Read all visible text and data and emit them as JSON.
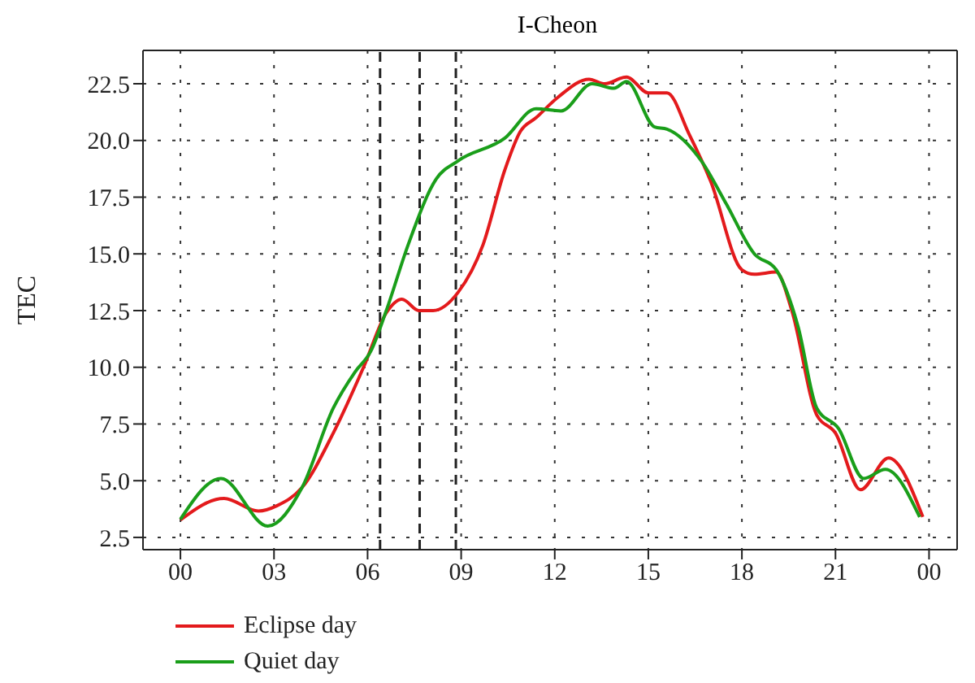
{
  "chart_data": {
    "type": "line",
    "title": "I-Cheon",
    "ylabel": "TEC",
    "xlim": [
      -1.2,
      24.9
    ],
    "ylim": [
      1.96,
      23.97
    ],
    "xticks": [
      {
        "value": 0,
        "label": "00"
      },
      {
        "value": 3,
        "label": "03"
      },
      {
        "value": 6,
        "label": "06"
      },
      {
        "value": 9,
        "label": "09"
      },
      {
        "value": 12,
        "label": "12"
      },
      {
        "value": 15,
        "label": "15"
      },
      {
        "value": 18,
        "label": "18"
      },
      {
        "value": 21,
        "label": "21"
      },
      {
        "value": 24,
        "label": "00"
      }
    ],
    "yticks": [
      {
        "value": 2.5,
        "label": "2.5"
      },
      {
        "value": 5,
        "label": "5.0"
      },
      {
        "value": 7.5,
        "label": "7.5"
      },
      {
        "value": 10,
        "label": "10.0"
      },
      {
        "value": 12.5,
        "label": "12.5"
      },
      {
        "value": 15,
        "label": "15.0"
      },
      {
        "value": 17.5,
        "label": "17.5"
      },
      {
        "value": 20,
        "label": "20.0"
      },
      {
        "value": 22.5,
        "label": "22.5"
      }
    ],
    "grid": true,
    "legend": "bottom left",
    "marker": "none",
    "line_style": "solid",
    "ref_lines": [
      {
        "axis": "x",
        "value": 6.4,
        "color": "#222222",
        "line_style": "dashed"
      },
      {
        "axis": "x",
        "value": 7.67,
        "color": "#222222",
        "line_style": "dashed"
      },
      {
        "axis": "x",
        "value": 8.83,
        "color": "#222222",
        "line_style": "dashed"
      }
    ],
    "series": [
      {
        "name": "Eclipse day",
        "color": "#e31a1c",
        "x": [
          0,
          1.4,
          2.5,
          3.1,
          3.9,
          4.9,
          5.9,
          6.6,
          7.1,
          7.65,
          8.1,
          8.9,
          9.7,
          10.4,
          10.9,
          11.4,
          12.1,
          13.1,
          13.6,
          14.3,
          15.0,
          15.6,
          16.3,
          17.0,
          18.0,
          18.4,
          19.1,
          19.6,
          20.4,
          21.0,
          21.8,
          22.7,
          23.8
        ],
        "values": [
          3.27,
          4.22,
          3.66,
          3.9,
          4.7,
          7.1,
          10.1,
          12.4,
          13.0,
          12.5,
          12.5,
          13.3,
          15.4,
          18.7,
          20.4,
          21.0,
          21.9,
          22.7,
          22.5,
          22.8,
          22.1,
          22.1,
          20.3,
          18.2,
          14.3,
          14.1,
          14.2,
          12.5,
          7.9,
          7.1,
          4.6,
          6.0,
          3.4
        ]
      },
      {
        "name": "Quiet day",
        "color": "#1a9e1a",
        "x": [
          0,
          1.3,
          2.8,
          3.9,
          4.9,
          5.6,
          6.1,
          6.6,
          7.3,
          8.2,
          8.9,
          10.4,
          11.4,
          12.2,
          13.2,
          13.9,
          14.3,
          15.2,
          15.6,
          16.7,
          17.5,
          18.4,
          19.1,
          19.8,
          20.4,
          21.1,
          21.9,
          22.6,
          23.7
        ],
        "values": [
          3.3,
          5.1,
          3.0,
          4.7,
          8.2,
          9.8,
          10.7,
          12.5,
          15.4,
          18.3,
          19.1,
          20.1,
          21.4,
          21.3,
          22.5,
          22.3,
          22.6,
          20.6,
          20.5,
          19.1,
          17.2,
          15.0,
          14.3,
          11.8,
          8.2,
          7.3,
          5.1,
          5.5,
          3.4
        ]
      }
    ]
  }
}
